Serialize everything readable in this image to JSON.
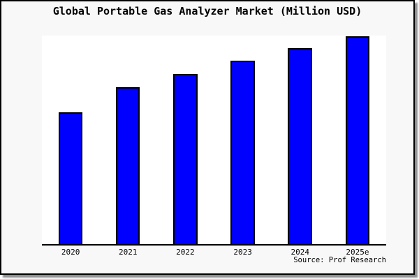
{
  "header": {
    "title": "Global Portable Gas Analyzer Market (Million USD)"
  },
  "footer": {
    "source": "Source: Prof Research"
  },
  "colors": {
    "bar_fill": "#0000fe",
    "bar_border": "#000000",
    "figure_background": "#f8f8f8",
    "plot_background": "#ffffff",
    "frame_border": "#000000",
    "shadow": "#8e8e8e",
    "text": "#000000"
  },
  "chart_data": {
    "type": "bar",
    "title": "Global Portable Gas Analyzer Market (Million USD)",
    "categories": [
      "2020",
      "2021",
      "2022",
      "2023",
      "2024",
      "2025e"
    ],
    "values": [
      63.3,
      75.5,
      81.8,
      88.2,
      94.2,
      100.0
    ],
    "values_note": "relative units estimated from bar heights; 2025e bar = 100 (no numeric y-axis shown in chart)",
    "xlabel": "",
    "ylabel": "",
    "ylim": [
      0,
      100.3
    ],
    "grid": false,
    "legend": false,
    "y_axis_ticks_visible": false,
    "annotations": [
      "Source: Prof Research"
    ]
  }
}
